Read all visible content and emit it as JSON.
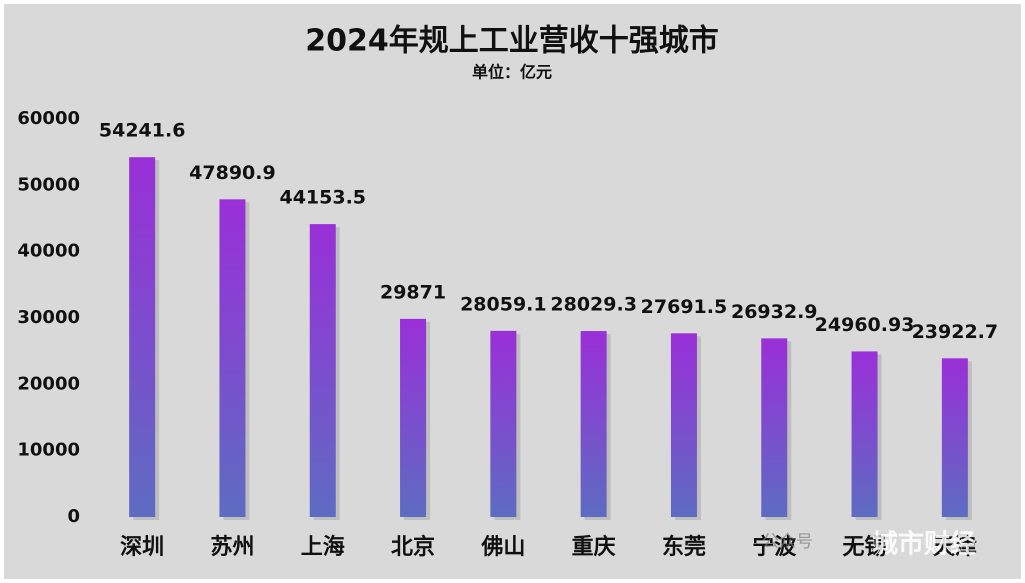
{
  "chart_data": {
    "type": "bar",
    "title": "2024年规上工业营收十强城市",
    "subtitle": "单位：亿元",
    "categories": [
      "深圳",
      "苏州",
      "上海",
      "北京",
      "佛山",
      "重庆",
      "东莞",
      "宁波",
      "无锡",
      "天津"
    ],
    "values": [
      54241.6,
      47890.9,
      44153.5,
      29871,
      28059.1,
      28029.3,
      27691.5,
      26932.9,
      24960.93,
      23922.7
    ],
    "gradient": [
      "#9a2fd8",
      "#5d6cc2"
    ],
    "ylim": [
      0,
      60000
    ],
    "yticks": [
      0,
      10000,
      20000,
      30000,
      40000,
      50000,
      60000
    ],
    "grid": false,
    "watermark": [
      "公众号",
      "城市财经"
    ]
  }
}
